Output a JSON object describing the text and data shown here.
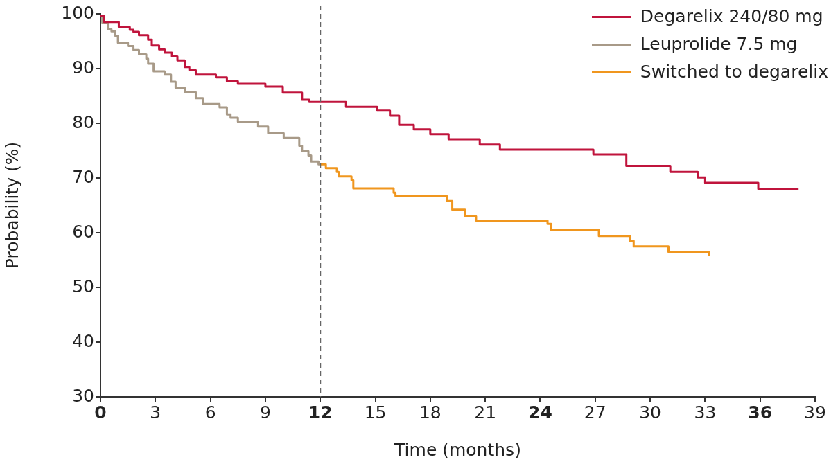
{
  "chart_data": {
    "type": "step",
    "xlabel": "Time (months)",
    "ylabel": "Probability (%)",
    "xlim": [
      0,
      39
    ],
    "xticks": [
      0,
      3,
      6,
      9,
      12,
      15,
      18,
      21,
      24,
      27,
      30,
      33,
      36,
      39
    ],
    "ylim": [
      30,
      100
    ],
    "yticks": [
      30,
      40,
      50,
      60,
      70,
      80,
      90,
      100
    ],
    "legend": "top right",
    "grid": false,
    "line_style": "solid",
    "marker": "none",
    "ref_lines": [
      {
        "axis": "x",
        "value": 12,
        "color": "#666666",
        "line_style": "dashed"
      }
    ],
    "series": [
      {
        "name": "Degarelix 240/80 mg",
        "color": "#c0143c",
        "x": [
          0,
          0.2,
          1.0,
          1.6,
          1.8,
          2.1,
          2.6,
          2.8,
          3.2,
          3.5,
          3.9,
          4.2,
          4.6,
          4.85,
          5.2,
          6.3,
          6.9,
          7.5,
          9.0,
          9.95,
          11.0,
          11.4,
          13.4,
          15.1,
          15.8,
          16.3,
          17.1,
          18.0,
          19.0,
          20.7,
          21.8,
          26.9,
          28.7,
          31.1,
          32.6,
          33.0,
          35.9,
          38.1
        ],
        "values": [
          99.6,
          98.5,
          97.6,
          97.1,
          96.7,
          96.1,
          95.3,
          94.2,
          93.5,
          92.9,
          92.2,
          91.5,
          90.3,
          89.7,
          88.9,
          88.4,
          87.7,
          87.2,
          86.7,
          85.6,
          84.3,
          83.9,
          83.0,
          82.3,
          81.4,
          79.7,
          78.9,
          78.0,
          77.1,
          76.1,
          75.2,
          74.3,
          72.2,
          71.1,
          70.1,
          69.1,
          68.0,
          68.0
        ]
      },
      {
        "name": "Leuprolide 7.5 mg",
        "color": "#a89a88",
        "x": [
          0,
          0.1,
          0.4,
          0.6,
          0.8,
          0.95,
          1.5,
          1.8,
          2.1,
          2.5,
          2.6,
          2.9,
          3.5,
          3.85,
          4.1,
          4.6,
          5.2,
          5.6,
          6.5,
          6.9,
          7.1,
          7.5,
          8.6,
          9.15,
          10.0,
          10.85,
          11.0,
          11.35,
          11.5,
          11.9,
          12.0
        ],
        "values": [
          99.6,
          98.4,
          97.2,
          96.8,
          96.0,
          94.7,
          94.1,
          93.4,
          92.6,
          91.8,
          90.9,
          89.5,
          88.9,
          87.6,
          86.5,
          85.7,
          84.6,
          83.5,
          82.9,
          81.6,
          81.0,
          80.3,
          79.4,
          78.2,
          77.3,
          75.9,
          74.9,
          74.1,
          73.0,
          72.5,
          72.5
        ]
      },
      {
        "name": "Switched to degarelix",
        "color": "#f0961e",
        "x": [
          12.0,
          12.3,
          12.9,
          13.0,
          13.7,
          13.8,
          16.0,
          16.1,
          18.9,
          19.2,
          19.9,
          20.5,
          24.4,
          24.6,
          27.2,
          28.9,
          29.1,
          31.0,
          33.2,
          33.2
        ],
        "values": [
          72.5,
          71.8,
          71.1,
          70.3,
          69.6,
          68.1,
          67.3,
          66.7,
          65.8,
          64.2,
          63.0,
          62.2,
          61.6,
          60.5,
          59.4,
          58.5,
          57.5,
          56.5,
          56.5,
          55.8
        ]
      }
    ]
  }
}
